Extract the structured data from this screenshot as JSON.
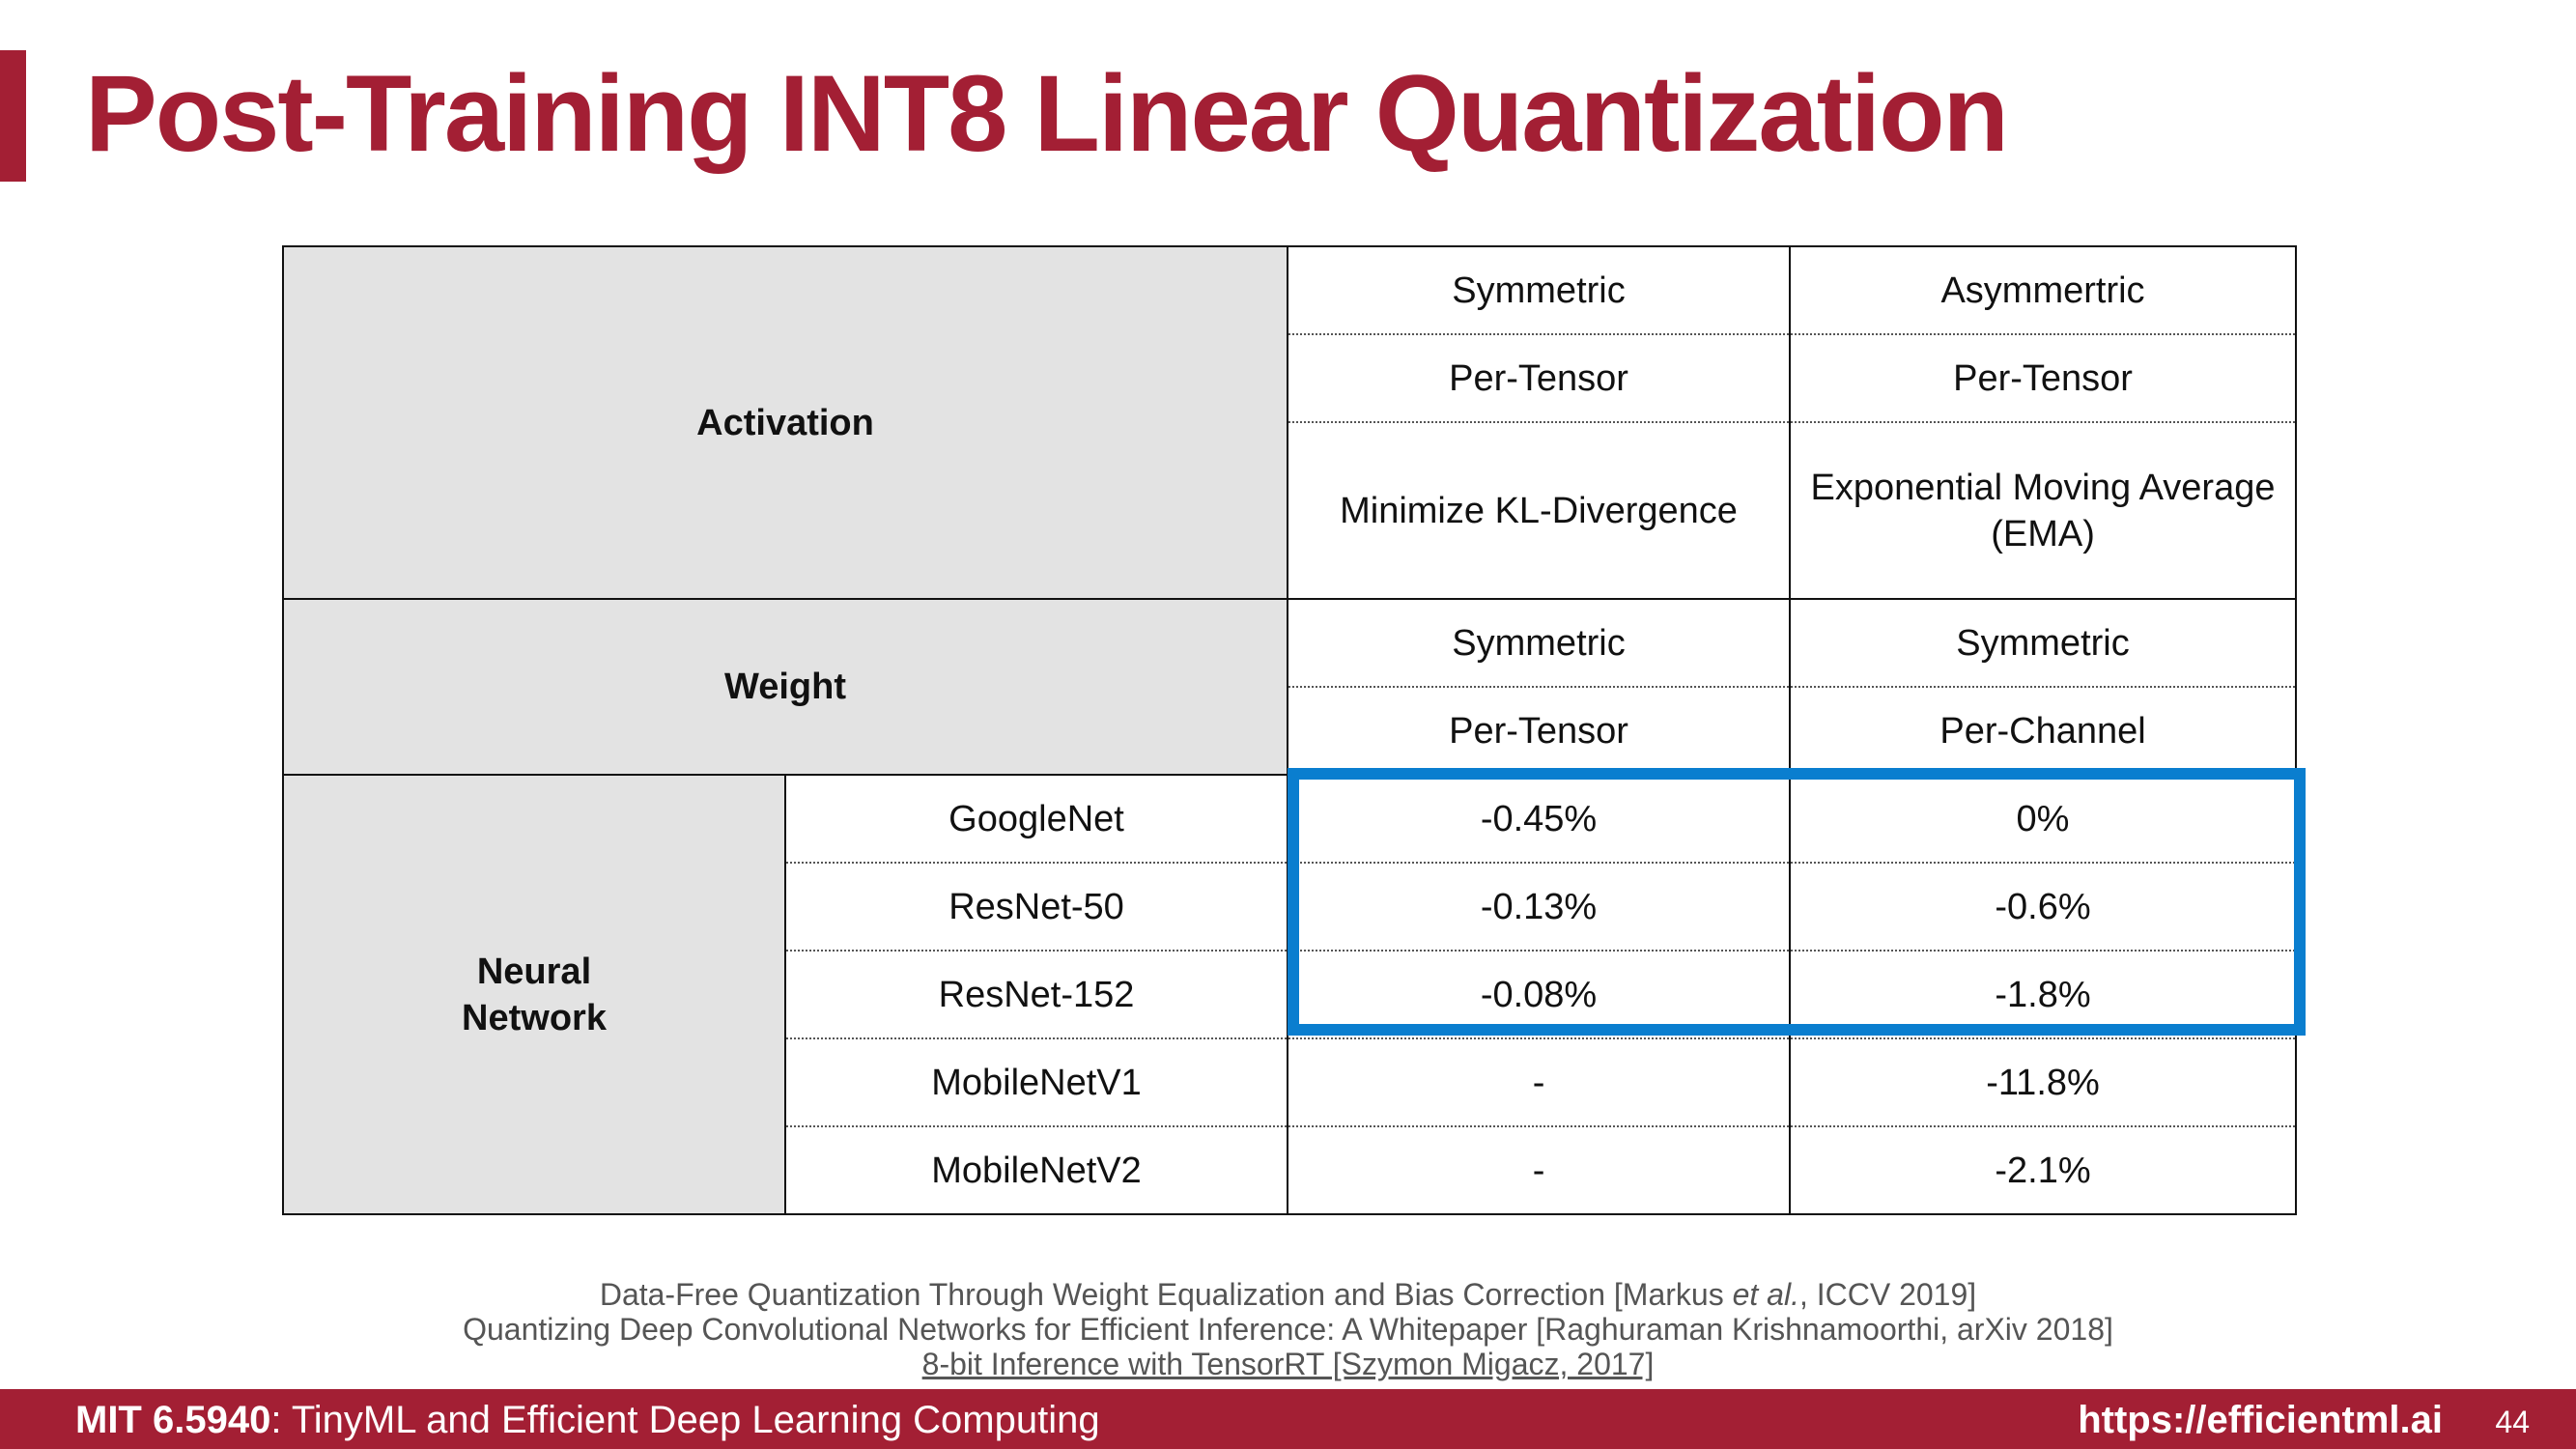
{
  "slide": {
    "title": "Post-Training INT8 Linear Quantization"
  },
  "table": {
    "activation_label": "Activation",
    "activation": {
      "scheme": [
        "Symmetric",
        "Asymmertric"
      ],
      "granularity": [
        "Per-Tensor",
        "Per-Tensor"
      ],
      "method": [
        "Minimize KL-Divergence",
        "Exponential Moving Average (EMA)"
      ]
    },
    "weight_label": "Weight",
    "weight": {
      "scheme": [
        "Symmetric",
        "Symmetric"
      ],
      "granularity": [
        "Per-Tensor",
        "Per-Channel"
      ]
    },
    "nn_label": "Neural Network",
    "rows": [
      {
        "model": "GoogleNet",
        "values": [
          "-0.45%",
          "0%"
        ]
      },
      {
        "model": "ResNet-50",
        "values": [
          "-0.13%",
          "-0.6%"
        ]
      },
      {
        "model": "ResNet-152",
        "values": [
          "-0.08%",
          "-1.8%"
        ]
      },
      {
        "model": "MobileNetV1",
        "values": [
          "-",
          "-11.8%"
        ]
      },
      {
        "model": "MobileNetV2",
        "values": [
          "-",
          "-2.1%"
        ]
      }
    ]
  },
  "references": [
    {
      "before": "Data-Free Quantization Through Weight Equalization and Bias Correction [Markus ",
      "em": "et al.",
      "after": ", ICCV 2019]"
    },
    {
      "text": "Quantizing Deep Convolutional Networks for Efficient Inference: A Whitepaper  [Raghuraman Krishnamoorthi, arXiv 2018]"
    },
    {
      "text": "8-bit Inference with TensorRT [Szymon Migacz, 2017]"
    }
  ],
  "footer": {
    "course_code": "MIT 6.5940",
    "course_name": ": TinyML and Efficient Deep Learning Computing",
    "url": "https://efficientml.ai",
    "page_number": "44"
  },
  "colors": {
    "brand": "#a31f34",
    "highlight": "#0a7ecf",
    "header_fill": "#e3e3e3"
  }
}
